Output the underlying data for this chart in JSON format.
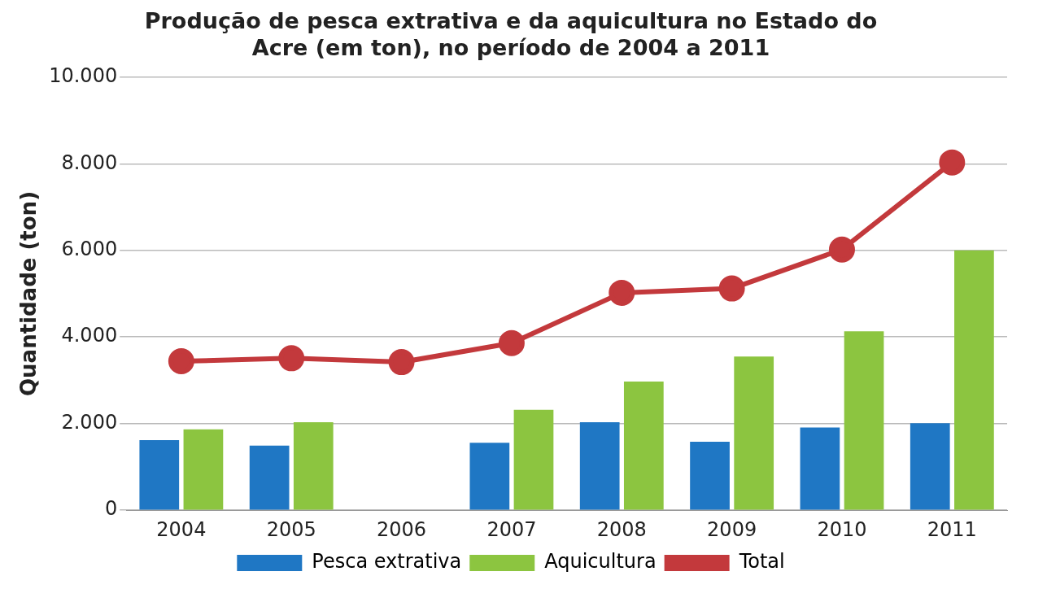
{
  "chart_data": {
    "type": "bar",
    "title": "Produção de pesca extrativa e da aquicultura no Estado do Acre (em ton), no período de 2004 a 2011",
    "ylabel": "Quantidade (ton)",
    "categories": [
      "2004",
      "2005",
      "2006",
      "2007",
      "2008",
      "2009",
      "2010",
      "2011"
    ],
    "series": [
      {
        "name": "Pesca extrativa",
        "color": "#1f77c4",
        "values": [
          1620,
          1490,
          null,
          1560,
          2030,
          1580,
          1910,
          2010
        ]
      },
      {
        "name": "Aquicultura",
        "color": "#8cc540",
        "values": [
          1870,
          2030,
          null,
          2320,
          2970,
          3550,
          4130,
          6000
        ]
      },
      {
        "name": "Total",
        "type": "line",
        "color": "#c3393c",
        "marker": "circle",
        "values": [
          3440,
          3510,
          3420,
          3860,
          5020,
          5120,
          6020,
          8030
        ]
      }
    ],
    "ylim": [
      0,
      10000
    ],
    "yticks": [
      {
        "value": 0,
        "label": "0"
      },
      {
        "value": 2000,
        "label": "2.000"
      },
      {
        "value": 4000,
        "label": "4.000"
      },
      {
        "value": 6000,
        "label": "6.000"
      },
      {
        "value": 8000,
        "label": "8.000"
      },
      {
        "value": 10000,
        "label": "10.000"
      }
    ],
    "grid": "y",
    "legend": "bottom"
  }
}
